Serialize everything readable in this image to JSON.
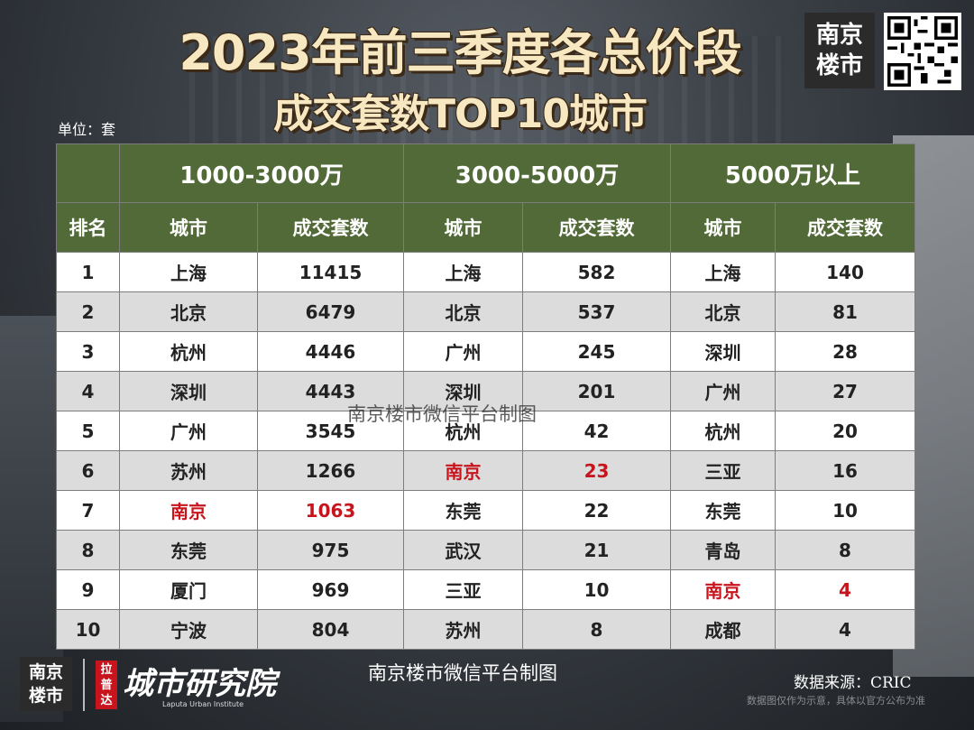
{
  "title_line1": "2023年前三季度各总价段",
  "title_line2": "成交套数TOP10城市",
  "unit_label": "单位：套",
  "brand_logo": "南京楼市",
  "table": {
    "headers_price": [
      "1000-3000万",
      "3000-5000万",
      "5000万以上"
    ],
    "headers_sub": [
      "排名",
      "城市",
      "成交套数",
      "城市",
      "成交套数",
      "城市",
      "成交套数"
    ],
    "rows": [
      {
        "rank": "1",
        "c1": "上海",
        "n1": "11415",
        "c2": "上海",
        "n2": "582",
        "c3": "上海",
        "n3": "140"
      },
      {
        "rank": "2",
        "c1": "北京",
        "n1": "6479",
        "c2": "北京",
        "n2": "537",
        "c3": "北京",
        "n3": "81"
      },
      {
        "rank": "3",
        "c1": "杭州",
        "n1": "4446",
        "c2": "广州",
        "n2": "245",
        "c3": "深圳",
        "n3": "28"
      },
      {
        "rank": "4",
        "c1": "深圳",
        "n1": "4443",
        "c2": "深圳",
        "n2": "201",
        "c3": "广州",
        "n3": "27"
      },
      {
        "rank": "5",
        "c1": "广州",
        "n1": "3545",
        "c2": "杭州",
        "n2": "42",
        "c3": "杭州",
        "n3": "20"
      },
      {
        "rank": "6",
        "c1": "苏州",
        "n1": "1266",
        "c2": "南京",
        "n2": "23",
        "c3": "三亚",
        "n3": "16"
      },
      {
        "rank": "7",
        "c1": "南京",
        "n1": "1063",
        "c2": "东莞",
        "n2": "22",
        "c3": "东莞",
        "n3": "10"
      },
      {
        "rank": "8",
        "c1": "东莞",
        "n1": "975",
        "c2": "武汉",
        "n2": "21",
        "c3": "青岛",
        "n3": "8"
      },
      {
        "rank": "9",
        "c1": "厦门",
        "n1": "969",
        "c2": "三亚",
        "n2": "10",
        "c3": "南京",
        "n3": "4"
      },
      {
        "rank": "10",
        "c1": "宁波",
        "n1": "804",
        "c2": "苏州",
        "n2": "8",
        "c3": "成都",
        "n3": "4"
      }
    ],
    "highlight_city": "南京",
    "highlight_color": "#c8141c",
    "header_color": "#526a37"
  },
  "watermark": "南京楼市微信平台制图",
  "footer": {
    "brand_logo": "南京楼市",
    "lpd_badge": "拉普达",
    "institute_name": "城市研究院",
    "institute_en": "Laputa Urban Institute",
    "credit": "南京楼市微信平台制图",
    "source": "数据来源：CRIC",
    "disclaimer": "数据图仅作为示意，具体以官方公布为准"
  }
}
